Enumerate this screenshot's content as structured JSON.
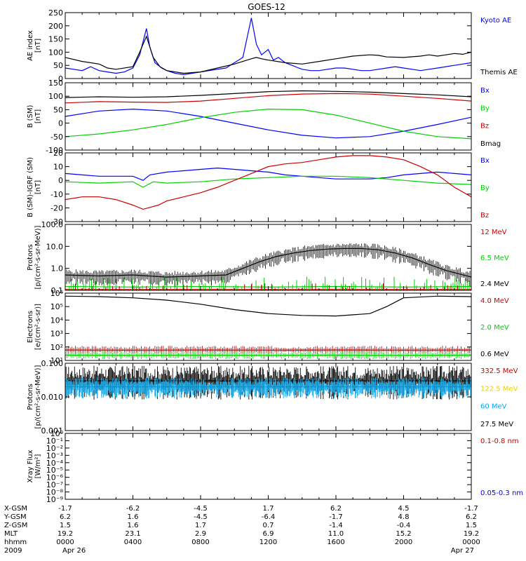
{
  "title": "GOES-12",
  "colors": {
    "black": "#000000",
    "blue": "#0000ff",
    "red": "#cc0000",
    "green": "#00d000",
    "cyan": "#00a8f0",
    "yellow": "#e8d000",
    "darkred": "#a00000"
  },
  "chart_data": [
    {
      "id": "ae",
      "type": "line",
      "ylabel_lines": [
        "AE index",
        "[nT]"
      ],
      "ylim": [
        0,
        250
      ],
      "yticks": [
        "0",
        "50",
        "100",
        "150",
        "200",
        "250"
      ],
      "ytick_values": [
        0,
        50,
        100,
        150,
        200,
        250
      ],
      "legend": [
        {
          "text": "Kyoto AE",
          "color": "#0000ff"
        },
        {
          "text": "Themis AE",
          "color": "#000000"
        }
      ],
      "series": [
        {
          "name": "Kyoto AE",
          "color": "#0000ff",
          "x": [
            0,
            0.5,
            1,
            1.5,
            2,
            2.5,
            3,
            3.5,
            4,
            4.4,
            4.8,
            5,
            5.3,
            5.7,
            6,
            6.5,
            7,
            7.5,
            8,
            8.5,
            9,
            9.5,
            10,
            10.5,
            11,
            11.3,
            11.6,
            12,
            12.3,
            12.6,
            13,
            13.4,
            13.8,
            14,
            14.5,
            15,
            15.5,
            16,
            16.5,
            17,
            17.5,
            18,
            18.5,
            19,
            19.5,
            20,
            20.5,
            21,
            21.5,
            22,
            22.5,
            23,
            23.5,
            24
          ],
          "y": [
            40,
            35,
            30,
            45,
            30,
            25,
            20,
            25,
            40,
            90,
            190,
            120,
            60,
            40,
            30,
            20,
            15,
            20,
            25,
            30,
            35,
            40,
            60,
            80,
            230,
            130,
            90,
            110,
            70,
            80,
            60,
            50,
            40,
            35,
            30,
            30,
            35,
            40,
            40,
            35,
            30,
            30,
            35,
            40,
            45,
            40,
            35,
            30,
            35,
            40,
            45,
            50,
            55,
            60
          ]
        },
        {
          "name": "Themis AE",
          "color": "#000000",
          "x": [
            0,
            1,
            2,
            2.5,
            3,
            4,
            4.4,
            4.8,
            5.2,
            5.6,
            6,
            7,
            8,
            9,
            10,
            10.5,
            11,
            11.3,
            11.6,
            12,
            13,
            14,
            15,
            16,
            17,
            18,
            18.5,
            19,
            20,
            21,
            21.5,
            22,
            22.5,
            23,
            23.5,
            24
          ],
          "y": [
            80,
            65,
            55,
            40,
            35,
            45,
            100,
            160,
            80,
            45,
            30,
            20,
            25,
            40,
            55,
            65,
            75,
            80,
            75,
            70,
            60,
            55,
            65,
            75,
            85,
            90,
            88,
            82,
            80,
            85,
            90,
            85,
            90,
            95,
            92,
            100
          ]
        }
      ]
    },
    {
      "id": "bsm",
      "type": "line",
      "ylabel_lines": [
        "B (SM)",
        "[nT]"
      ],
      "ylim": [
        -100,
        150
      ],
      "yticks": [
        "-100",
        "-50",
        "0",
        "50",
        "100",
        "150"
      ],
      "ytick_values": [
        -100,
        -50,
        0,
        50,
        100,
        150
      ],
      "legend": [
        {
          "text": "Bx",
          "color": "#0000ff"
        },
        {
          "text": "By",
          "color": "#00d000"
        },
        {
          "text": "Bz",
          "color": "#cc0000"
        },
        {
          "text": "Bmag",
          "color": "#000000"
        }
      ],
      "series": [
        {
          "name": "Bmag",
          "color": "#000000",
          "x": [
            0,
            2,
            4,
            6,
            8,
            10,
            12,
            14,
            16,
            18,
            20,
            22,
            24
          ],
          "y": [
            95,
            98,
            96,
            98,
            103,
            110,
            117,
            120,
            118,
            115,
            110,
            105,
            98
          ]
        },
        {
          "name": "Bz",
          "color": "#cc0000",
          "x": [
            0,
            2,
            4,
            6,
            8,
            10,
            12,
            14,
            16,
            18,
            20,
            22,
            24
          ],
          "y": [
            75,
            80,
            78,
            77,
            82,
            92,
            102,
            108,
            110,
            108,
            100,
            92,
            82
          ]
        },
        {
          "name": "Bx",
          "color": "#0000ff",
          "x": [
            0,
            2,
            4,
            6,
            8,
            10,
            12,
            14,
            16,
            18,
            20,
            22,
            24
          ],
          "y": [
            25,
            45,
            52,
            45,
            25,
            0,
            -25,
            -45,
            -55,
            -50,
            -30,
            -5,
            22
          ]
        },
        {
          "name": "By",
          "color": "#00d000",
          "x": [
            0,
            2,
            4,
            6,
            8,
            10,
            12,
            14,
            16,
            18,
            20,
            22,
            24
          ],
          "y": [
            -50,
            -40,
            -25,
            -5,
            20,
            40,
            52,
            50,
            30,
            0,
            -30,
            -50,
            -58
          ]
        }
      ]
    },
    {
      "id": "bres",
      "type": "line",
      "ylabel_lines": [
        "B (SM)-IGRF (SM)",
        "[nT]"
      ],
      "ylim": [
        -30,
        20
      ],
      "yticks": [
        "-30",
        "-20",
        "-10",
        "0",
        "10",
        "20"
      ],
      "ytick_values": [
        -30,
        -20,
        -10,
        0,
        10,
        20
      ],
      "legend": [
        {
          "text": "Bx",
          "color": "#0000ff"
        },
        {
          "text": "By",
          "color": "#00d000"
        },
        {
          "text": "Bz",
          "color": "#cc0000"
        }
      ],
      "series": [
        {
          "name": "Bx",
          "color": "#0000ff",
          "x": [
            0,
            1,
            2,
            3,
            4,
            4.6,
            5,
            6,
            7,
            8,
            9,
            10,
            11,
            12,
            13,
            14,
            15,
            16,
            17,
            18,
            19,
            20,
            21,
            22,
            23,
            24
          ],
          "y": [
            5,
            4,
            3,
            3,
            3,
            0,
            4,
            6,
            7,
            8,
            9,
            8,
            7,
            6,
            4,
            3,
            2,
            1,
            1,
            1,
            2,
            4,
            5,
            6,
            5,
            4
          ]
        },
        {
          "name": "By",
          "color": "#00d000",
          "x": [
            0,
            2,
            4,
            4.6,
            5.2,
            6,
            8,
            10,
            12,
            14,
            16,
            18,
            20,
            22,
            24
          ],
          "y": [
            -1,
            -2,
            -1,
            -5,
            -1,
            -2,
            -1,
            1,
            2,
            3,
            3,
            2,
            0,
            -2,
            -3
          ]
        },
        {
          "name": "Bz",
          "color": "#cc0000",
          "x": [
            0,
            1,
            2,
            3,
            4,
            4.6,
            5.5,
            6,
            7,
            8,
            9,
            10,
            11,
            12,
            13,
            14,
            15,
            16,
            17,
            18,
            19,
            20,
            21,
            22,
            23,
            24
          ],
          "y": [
            -14,
            -12,
            -12,
            -14,
            -18,
            -21,
            -18,
            -15,
            -12,
            -9,
            -5,
            0,
            5,
            10,
            12,
            13,
            15,
            17,
            18,
            18,
            17,
            15,
            10,
            4,
            -5,
            -12
          ]
        }
      ]
    },
    {
      "id": "protons",
      "type": "line",
      "ylabel_lines": [
        "Protons",
        "[p/(cm²-s-sr-MeV)]"
      ],
      "yscale": "log",
      "ylim": [
        0.1,
        100
      ],
      "yticks": [
        "0.1",
        "1.0",
        "10.0",
        "100.0"
      ],
      "ytick_values": [
        0.1,
        1,
        10,
        100
      ],
      "legend": [
        {
          "text": "12 MeV",
          "color": "#cc0000"
        },
        {
          "text": "6.5 MeV",
          "color": "#00d000"
        },
        {
          "text": "2.4 MeV",
          "color": "#000000"
        }
      ],
      "series": [
        {
          "name": "2.4 MeV",
          "color": "#000000",
          "x": [
            0,
            2,
            4,
            6,
            8,
            9.5,
            10.5,
            11.5,
            12.5,
            13.5,
            14.5,
            15.5,
            16.5,
            17.5,
            18.5,
            19.5,
            20.5,
            21.5,
            22.5,
            24
          ],
          "y": [
            0.5,
            0.45,
            0.5,
            0.4,
            0.45,
            0.5,
            1.0,
            2.0,
            3.5,
            5.0,
            6.5,
            7.5,
            8.0,
            8.0,
            7.0,
            5.0,
            3.0,
            1.5,
            0.8,
            0.4
          ]
        },
        {
          "name": "6.5 MeV",
          "color": "#00d000",
          "x": [
            0,
            4,
            8,
            12,
            16,
            20,
            24
          ],
          "y": [
            0.15,
            0.14,
            0.15,
            0.14,
            0.15,
            0.14,
            0.15
          ]
        },
        {
          "name": "12 MeV",
          "color": "#cc0000",
          "x": [
            0,
            4,
            8,
            12,
            16,
            20,
            24
          ],
          "y": [
            0.11,
            0.11,
            0.11,
            0.11,
            0.11,
            0.11,
            0.11
          ]
        }
      ]
    },
    {
      "id": "electrons",
      "type": "line",
      "ylabel_lines": [
        "Electrons",
        "[e/(cm²-s-sr)]"
      ],
      "yscale": "log",
      "ylim": [
        10,
        1000000
      ],
      "yticks": [
        "10¹",
        "10²",
        "10³",
        "10⁴",
        "10⁵",
        "10⁶"
      ],
      "ytick_values": [
        10,
        100,
        1000,
        10000,
        100000,
        1000000
      ],
      "legend": [
        {
          "text": "4.0 MeV",
          "color": "#cc0000"
        },
        {
          "text": "2.0 MeV",
          "color": "#00d000"
        },
        {
          "text": "0.6 MeV",
          "color": "#000000"
        }
      ],
      "series": [
        {
          "name": "0.6 MeV",
          "color": "#000000",
          "x": [
            0,
            2,
            4,
            6,
            8,
            10,
            12,
            14,
            16,
            18,
            19,
            20,
            22,
            24
          ],
          "y": [
            600000,
            550000,
            450000,
            300000,
            150000,
            60000,
            30000,
            22000,
            20000,
            30000,
            100000,
            450000,
            600000,
            550000
          ]
        },
        {
          "name": "4.0 MeV",
          "color": "#cc0000",
          "x": [
            0,
            4,
            8,
            12,
            16,
            20,
            24
          ],
          "y": [
            60,
            58,
            60,
            58,
            60,
            58,
            60
          ]
        },
        {
          "name": "2.0 MeV",
          "color": "#00d000",
          "x": [
            0,
            4,
            8,
            12,
            16,
            20,
            24
          ],
          "y": [
            25,
            24,
            25,
            24,
            25,
            24,
            25
          ]
        }
      ]
    },
    {
      "id": "hiprotons",
      "type": "line",
      "ylabel_lines": [
        "Protons",
        "[p/(cm²-s-sr-MeV)]"
      ],
      "yscale": "log",
      "ylim": [
        0.001,
        0.1
      ],
      "yticks": [
        "0.001",
        "0.010",
        "0.100"
      ],
      "ytick_values": [
        0.001,
        0.01,
        0.1
      ],
      "legend": [
        {
          "text": "332.5 MeV",
          "color": "#cc0000"
        },
        {
          "text": "122.5 MeV",
          "color": "#e8d000"
        },
        {
          "text": "60 MeV",
          "color": "#00a8f0"
        },
        {
          "text": "27.5 MeV",
          "color": "#000000"
        }
      ],
      "series": [
        {
          "name": "27.5 MeV",
          "color": "#000000",
          "x": [
            0,
            4,
            8,
            12,
            16,
            20,
            24
          ],
          "y": [
            0.03,
            0.03,
            0.03,
            0.03,
            0.03,
            0.03,
            0.03
          ]
        },
        {
          "name": "60 MeV",
          "color": "#00a8f0",
          "x": [
            0,
            4,
            8,
            12,
            16,
            20,
            24
          ],
          "y": [
            0.02,
            0.02,
            0.02,
            0.02,
            0.02,
            0.02,
            0.02
          ]
        }
      ]
    },
    {
      "id": "xray",
      "type": "line",
      "ylabel_lines": [
        "Xray Flux",
        "[W/m²]"
      ],
      "yscale": "log",
      "ylim": [
        1e-09,
        1
      ],
      "yticks": [
        "10⁻⁹",
        "10⁻⁸",
        "10⁻⁷",
        "10⁻⁶",
        "10⁻⁵",
        "10⁻⁴",
        "10⁻³",
        "10⁻²",
        "10⁻¹",
        "10⁰"
      ],
      "ytick_values": [
        1e-09,
        1e-08,
        1e-07,
        1e-06,
        1e-05,
        0.0001,
        0.001,
        0.01,
        0.1,
        1
      ],
      "legend": [
        {
          "text": "0.1-0.8 nm",
          "color": "#cc0000"
        },
        {
          "text": "0.05-0.3 nm",
          "color": "#0000ff"
        }
      ],
      "series": []
    }
  ],
  "x_axis": {
    "xlim": [
      0,
      24
    ],
    "row_labels": [
      "X-GSM",
      "Y-GSM",
      "Z-GSM",
      "MLT",
      "hhmm",
      "2009"
    ],
    "columns": [
      {
        "x": 0,
        "values": [
          "-1.7",
          "6.2",
          "1.5",
          "19.2",
          "0000",
          "Apr 26"
        ]
      },
      {
        "x": 4,
        "values": [
          "-6.2",
          "1.6",
          "1.6",
          "23.1",
          "0400",
          ""
        ]
      },
      {
        "x": 8,
        "values": [
          "-4.5",
          "-4.5",
          "1.7",
          "2.9",
          "0800",
          ""
        ]
      },
      {
        "x": 12,
        "values": [
          "1.7",
          "-6.4",
          "0.7",
          "6.9",
          "1200",
          ""
        ]
      },
      {
        "x": 16,
        "values": [
          "6.2",
          "-1.7",
          "-1.4",
          "11.0",
          "1600",
          ""
        ]
      },
      {
        "x": 20,
        "values": [
          "4.5",
          "4.8",
          "-0.4",
          "15.2",
          "2000",
          ""
        ]
      },
      {
        "x": 24,
        "values": [
          "-1.7",
          "6.2",
          "1.5",
          "19.2",
          "0000",
          "Apr 27"
        ]
      }
    ]
  }
}
